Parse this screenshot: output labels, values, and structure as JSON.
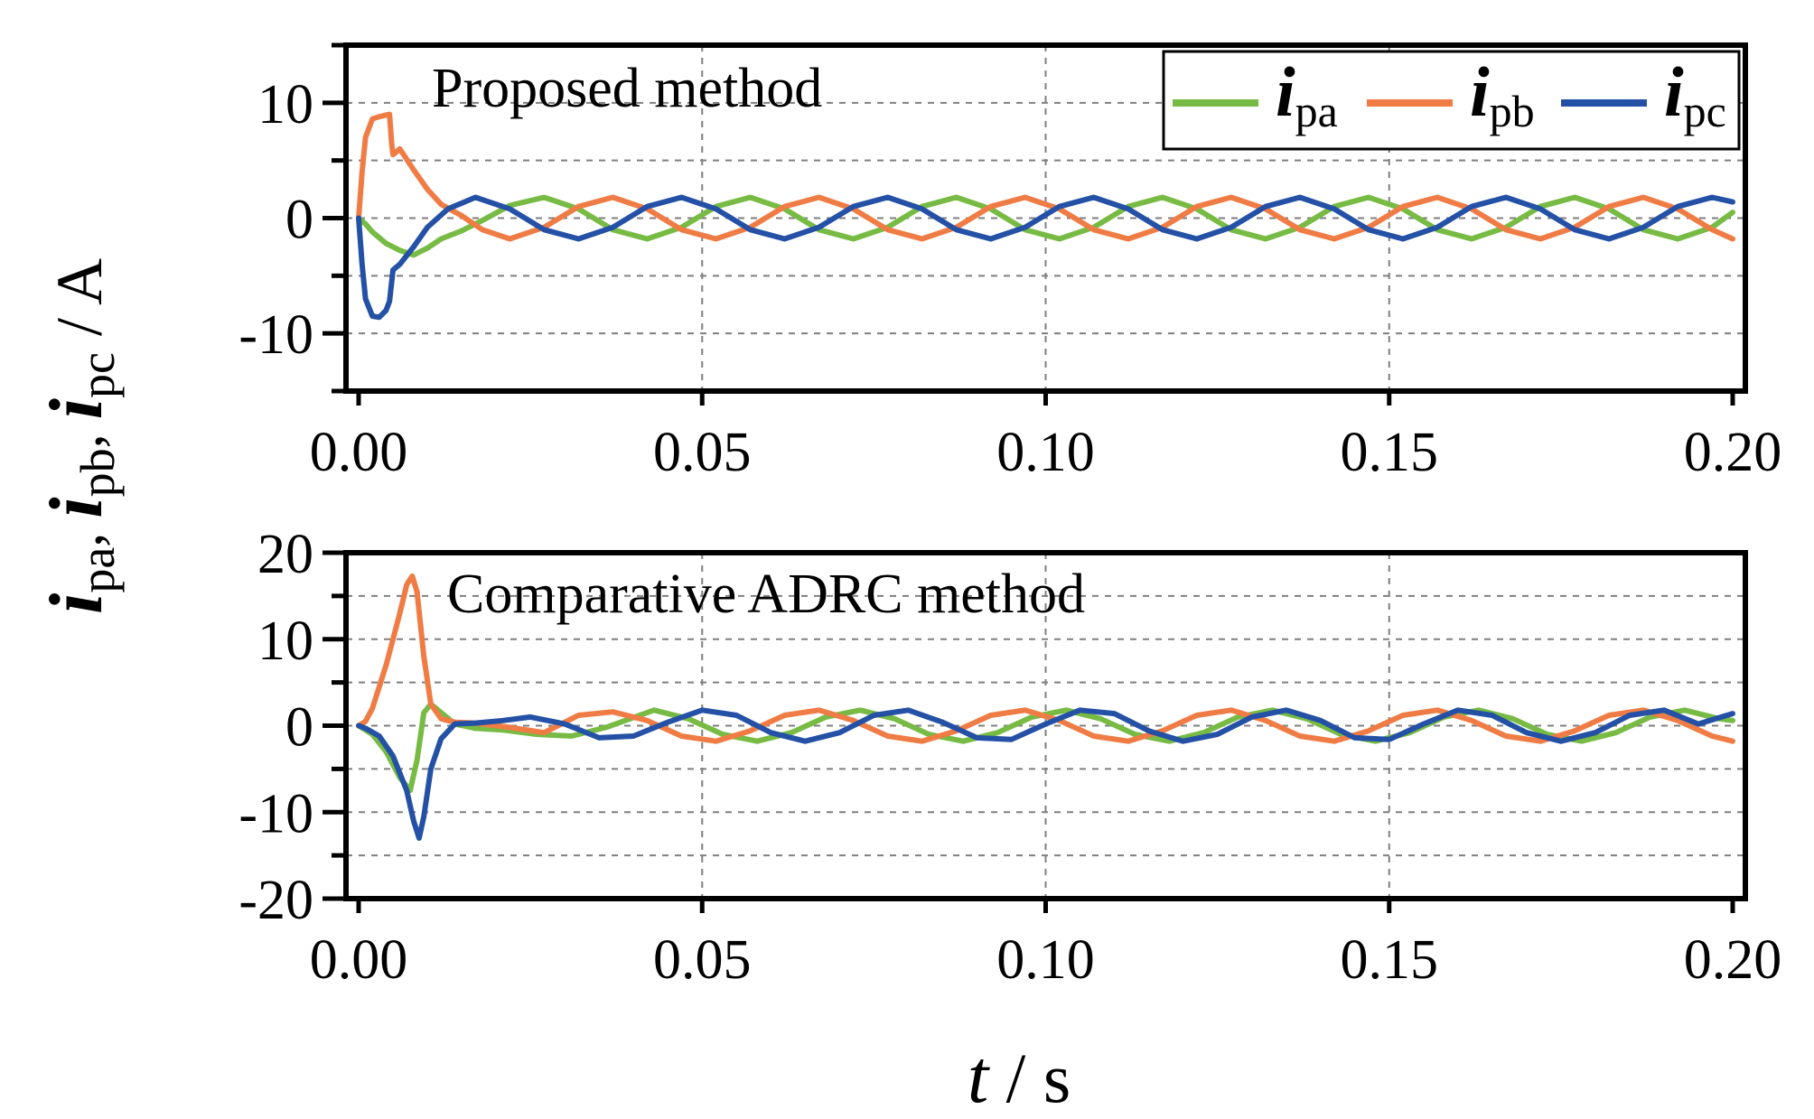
{
  "ylabel": {
    "parts": [
      {
        "sym": "i",
        "sub": "pa"
      },
      {
        "sym": "i",
        "sub": "pb"
      },
      {
        "sym": "i",
        "sub": "pc"
      }
    ],
    "separator": ",",
    "unit": " / A"
  },
  "xlabel": {
    "sym": "t",
    "unit": " / s"
  },
  "legend": [
    {
      "sym": "i",
      "sub": "pa",
      "color": "#77bb44"
    },
    {
      "sym": "i",
      "sub": "pb",
      "color": "#f07c45"
    },
    {
      "sym": "i",
      "sub": "pc",
      "color": "#2451a6"
    }
  ],
  "chart_data": [
    {
      "type": "line",
      "annotation": "Proposed method",
      "xlim": [
        0,
        0.2
      ],
      "ylim": [
        -15,
        15
      ],
      "yticks": [
        -10,
        0,
        10
      ],
      "ytick_labels": [
        "-10",
        "0",
        "10"
      ],
      "xticks": [
        0,
        0.05,
        0.1,
        0.15,
        0.2
      ],
      "xtick_labels": [
        "0.00",
        "0.05",
        "0.10",
        "0.15",
        "0.20"
      ],
      "grid": true,
      "series": [
        {
          "name": "i_pa",
          "color": "#77bb44",
          "x": [
            0,
            0.001,
            0.002,
            0.004,
            0.006,
            0.008,
            0.009,
            0.01,
            0.012,
            0.015,
            0.018,
            0.022,
            0.027,
            0.032,
            0.037,
            0.042,
            0.047,
            0.052,
            0.057,
            0.062,
            0.067,
            0.072,
            0.077,
            0.082,
            0.087,
            0.092,
            0.097,
            0.102,
            0.107,
            0.112,
            0.117,
            0.122,
            0.127,
            0.132,
            0.137,
            0.142,
            0.147,
            0.152,
            0.157,
            0.162,
            0.167,
            0.172,
            0.177,
            0.182,
            0.187,
            0.192,
            0.197,
            0.2
          ],
          "y": [
            0,
            -0.5,
            -1.2,
            -2.2,
            -2.8,
            -3.2,
            -2.9,
            -2.6,
            -1.8,
            -1.1,
            -0.2,
            1.1,
            1.8,
            0.8,
            -1.0,
            -1.8,
            -0.8,
            1.0,
            1.8,
            0.8,
            -1.0,
            -1.8,
            -0.8,
            1.0,
            1.8,
            0.8,
            -1.0,
            -1.8,
            -0.8,
            1.0,
            1.8,
            0.8,
            -1.0,
            -1.8,
            -0.8,
            1.0,
            1.8,
            0.8,
            -1.0,
            -1.8,
            -0.8,
            1.0,
            1.8,
            0.8,
            -1.0,
            -1.8,
            -0.8,
            0.5
          ]
        },
        {
          "name": "i_pb",
          "color": "#f07c45",
          "x": [
            0,
            0.0005,
            0.001,
            0.002,
            0.003,
            0.0045,
            0.0048,
            0.005,
            0.006,
            0.008,
            0.01,
            0.012,
            0.015,
            0.018,
            0.022,
            0.027,
            0.032,
            0.037,
            0.042,
            0.047,
            0.052,
            0.057,
            0.062,
            0.067,
            0.072,
            0.077,
            0.082,
            0.087,
            0.092,
            0.097,
            0.102,
            0.107,
            0.112,
            0.117,
            0.122,
            0.127,
            0.132,
            0.137,
            0.142,
            0.147,
            0.152,
            0.157,
            0.162,
            0.167,
            0.172,
            0.177,
            0.182,
            0.187,
            0.192,
            0.197,
            0.2
          ],
          "y": [
            0,
            4,
            7,
            8.6,
            8.8,
            9.0,
            6.5,
            5.5,
            6.0,
            4.2,
            2.5,
            1.2,
            0.2,
            -1.0,
            -1.8,
            -0.8,
            1.0,
            1.8,
            0.8,
            -1.0,
            -1.8,
            -0.8,
            1.0,
            1.8,
            0.8,
            -1.0,
            -1.8,
            -0.8,
            1.0,
            1.8,
            0.8,
            -1.0,
            -1.8,
            -0.8,
            1.0,
            1.8,
            0.8,
            -1.0,
            -1.8,
            -0.8,
            1.0,
            1.8,
            0.8,
            -1.0,
            -1.8,
            -0.8,
            1.0,
            1.8,
            0.8,
            -1.0,
            -1.8
          ]
        },
        {
          "name": "i_pc",
          "color": "#2451a6",
          "x": [
            0,
            0.0005,
            0.001,
            0.002,
            0.003,
            0.004,
            0.0045,
            0.005,
            0.006,
            0.008,
            0.01,
            0.013,
            0.017,
            0.022,
            0.027,
            0.032,
            0.037,
            0.042,
            0.047,
            0.052,
            0.057,
            0.062,
            0.067,
            0.072,
            0.077,
            0.082,
            0.087,
            0.092,
            0.097,
            0.102,
            0.107,
            0.112,
            0.117,
            0.122,
            0.127,
            0.132,
            0.137,
            0.142,
            0.147,
            0.152,
            0.157,
            0.162,
            0.167,
            0.172,
            0.177,
            0.182,
            0.187,
            0.192,
            0.197,
            0.2
          ],
          "y": [
            0,
            -4,
            -7,
            -8.5,
            -8.6,
            -8.0,
            -7.2,
            -4.5,
            -4.0,
            -2.5,
            -0.8,
            0.8,
            1.8,
            0.8,
            -1.0,
            -1.8,
            -0.8,
            1.0,
            1.8,
            0.8,
            -1.0,
            -1.8,
            -0.8,
            1.0,
            1.8,
            0.8,
            -1.0,
            -1.8,
            -0.8,
            1.0,
            1.8,
            0.8,
            -1.0,
            -1.8,
            -0.8,
            1.0,
            1.8,
            0.8,
            -1.0,
            -1.8,
            -0.8,
            1.0,
            1.8,
            0.8,
            -1.0,
            -1.8,
            -0.8,
            1.0,
            1.8,
            1.4
          ]
        }
      ]
    },
    {
      "type": "line",
      "annotation": "Comparative ADRC method",
      "xlim": [
        0,
        0.2
      ],
      "ylim": [
        -20,
        20
      ],
      "yticks": [
        -20,
        -10,
        0,
        10,
        20
      ],
      "ytick_labels": [
        "-20",
        "-10",
        "0",
        "10",
        "20"
      ],
      "xticks": [
        0,
        0.05,
        0.1,
        0.15,
        0.2
      ],
      "xtick_labels": [
        "0.00",
        "0.05",
        "0.10",
        "0.15",
        "0.20"
      ],
      "grid": true,
      "series": [
        {
          "name": "i_pa",
          "color": "#77bb44",
          "x": [
            0,
            0.002,
            0.004,
            0.006,
            0.0075,
            0.0085,
            0.0095,
            0.0105,
            0.012,
            0.014,
            0.017,
            0.021,
            0.026,
            0.031,
            0.036,
            0.043,
            0.048,
            0.053,
            0.058,
            0.063,
            0.068,
            0.073,
            0.078,
            0.083,
            0.088,
            0.093,
            0.098,
            0.103,
            0.108,
            0.113,
            0.118,
            0.123,
            0.128,
            0.133,
            0.138,
            0.143,
            0.148,
            0.153,
            0.158,
            0.163,
            0.168,
            0.173,
            0.178,
            0.183,
            0.188,
            0.193,
            0.198,
            0.2
          ],
          "y": [
            0,
            -1.0,
            -3.0,
            -6.0,
            -7.5,
            -4.0,
            1.5,
            2.5,
            1.5,
            0.2,
            -0.3,
            -0.5,
            -1.0,
            -1.2,
            -0.2,
            1.8,
            0.8,
            -1.0,
            -1.8,
            -0.8,
            1.0,
            1.8,
            0.8,
            -1.0,
            -1.8,
            -0.8,
            1.0,
            1.8,
            0.8,
            -1.0,
            -1.8,
            -0.8,
            1.0,
            1.8,
            0.8,
            -1.0,
            -1.8,
            -0.8,
            1.0,
            1.8,
            0.8,
            -1.0,
            -1.8,
            -0.8,
            1.0,
            1.8,
            0.8,
            0.6
          ]
        },
        {
          "name": "i_pb",
          "color": "#f07c45",
          "x": [
            0,
            0.001,
            0.002,
            0.004,
            0.006,
            0.007,
            0.0078,
            0.0085,
            0.0095,
            0.0105,
            0.012,
            0.014,
            0.017,
            0.022,
            0.027,
            0.032,
            0.037,
            0.042,
            0.047,
            0.052,
            0.057,
            0.062,
            0.067,
            0.072,
            0.077,
            0.082,
            0.087,
            0.092,
            0.097,
            0.102,
            0.107,
            0.112,
            0.117,
            0.122,
            0.127,
            0.132,
            0.137,
            0.142,
            0.147,
            0.152,
            0.157,
            0.162,
            0.167,
            0.172,
            0.177,
            0.182,
            0.187,
            0.192,
            0.197,
            0.2
          ],
          "y": [
            0,
            0.5,
            2,
            7,
            13,
            16.3,
            17.3,
            15.5,
            8.0,
            2.5,
            0.8,
            0.4,
            0.3,
            -0.2,
            -0.8,
            1.2,
            1.6,
            0.6,
            -1.2,
            -1.8,
            -0.6,
            1.2,
            1.8,
            0.6,
            -1.2,
            -1.8,
            -0.6,
            1.2,
            1.8,
            0.6,
            -1.2,
            -1.8,
            -0.6,
            1.2,
            1.8,
            0.6,
            -1.2,
            -1.8,
            -0.6,
            1.2,
            1.8,
            0.6,
            -1.2,
            -1.8,
            -0.6,
            1.2,
            1.8,
            0.6,
            -1.2,
            -1.8
          ]
        },
        {
          "name": "i_pc",
          "color": "#2451a6",
          "x": [
            0,
            0.001,
            0.003,
            0.005,
            0.007,
            0.008,
            0.0088,
            0.0095,
            0.0105,
            0.012,
            0.014,
            0.017,
            0.021,
            0.025,
            0.03,
            0.035,
            0.04,
            0.045,
            0.05,
            0.055,
            0.06,
            0.065,
            0.07,
            0.075,
            0.08,
            0.085,
            0.09,
            0.095,
            0.1,
            0.105,
            0.11,
            0.115,
            0.12,
            0.125,
            0.13,
            0.135,
            0.14,
            0.145,
            0.15,
            0.155,
            0.16,
            0.165,
            0.17,
            0.175,
            0.18,
            0.185,
            0.19,
            0.195,
            0.2
          ],
          "y": [
            0,
            -0.3,
            -1.2,
            -3.5,
            -7.5,
            -11.0,
            -13.0,
            -10.5,
            -5.0,
            -1.5,
            0.2,
            0.3,
            0.6,
            1.0,
            0.2,
            -1.4,
            -1.2,
            0.4,
            1.8,
            1.2,
            -0.8,
            -1.8,
            -0.8,
            1.2,
            1.8,
            0.4,
            -1.4,
            -1.6,
            0.2,
            1.8,
            1.4,
            -0.6,
            -1.8,
            -1.0,
            1.0,
            1.8,
            0.6,
            -1.4,
            -1.6,
            0.2,
            1.8,
            1.2,
            -0.8,
            -1.8,
            -0.8,
            1.2,
            1.8,
            0.2,
            1.4
          ]
        }
      ]
    }
  ]
}
